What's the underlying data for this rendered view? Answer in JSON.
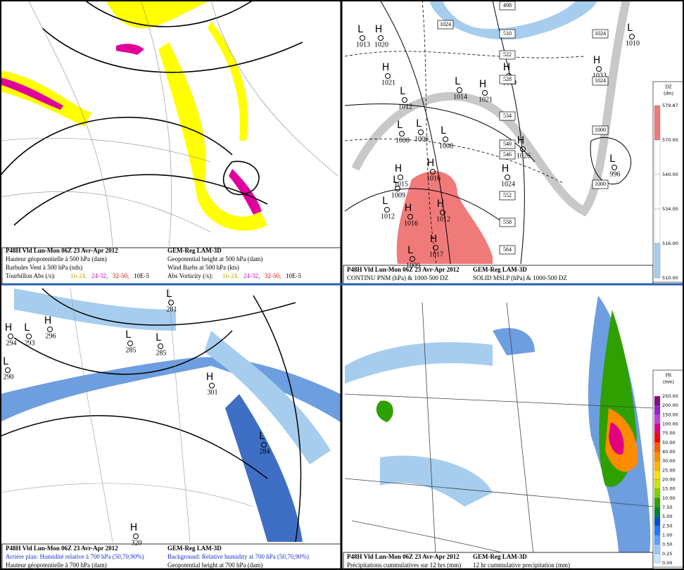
{
  "panels": [
    {
      "caption_left": [
        "P48H Vld Lun-Mon 06Z 23 Avr-Apr 2012",
        "Hauteur géopotentielle à 500 hPa (dam)",
        "Barbules Vent à 500 hPa (nds)"
      ],
      "caption_right": [
        "GEM-Reg LAM-3D",
        "Geopotential height at 500 hPa (dam)",
        "Wind Barbs at 500 hPa  (kts)"
      ],
      "legend": {
        "label_left": "Tourbillon Abs (/s):",
        "label_right": "Abs Vorticity (/s):",
        "ranges": [
          "16-24,",
          "24-32,",
          "32-50,"
        ],
        "unit": "10E-5"
      }
    },
    {
      "caption_left": [
        "P48H Vld Lun-Mon 06Z 23 Avr-Apr 2012",
        "CONTINU PNM (hPa) & 1000-500 DZ"
      ],
      "caption_right": [
        "GEM-Reg LAM-3D",
        "SOLID  MSLP (hPa) & 1000-500 DZ"
      ],
      "centers": [
        {
          "symbol": "L",
          "value": "1013"
        },
        {
          "symbol": "H",
          "value": "1020"
        },
        {
          "symbol": "H",
          "value": "1021"
        },
        {
          "symbol": "L",
          "value": "1012"
        },
        {
          "symbol": "L",
          "value": "1014"
        },
        {
          "symbol": "H",
          "value": "1021"
        },
        {
          "symbol": "H",
          "value": "1009"
        },
        {
          "symbol": "L",
          "value": "1008"
        },
        {
          "symbol": "L",
          "value": "1006"
        },
        {
          "symbol": "L",
          "value": "1008"
        },
        {
          "symbol": "H",
          "value": "1015"
        },
        {
          "symbol": "H",
          "value": "1016"
        },
        {
          "symbol": "L",
          "value": "1009"
        },
        {
          "symbol": "L",
          "value": "1012"
        },
        {
          "symbol": "H",
          "value": "1016"
        },
        {
          "symbol": "H",
          "value": "1012"
        },
        {
          "symbol": "H",
          "value": "1017"
        },
        {
          "symbol": "L",
          "value": "1009"
        },
        {
          "symbol": "H",
          "value": "1026"
        },
        {
          "symbol": "H",
          "value": "1024"
        },
        {
          "symbol": "H",
          "value": "1033"
        },
        {
          "symbol": "L",
          "value": "996"
        },
        {
          "symbol": "L",
          "value": "1010"
        }
      ],
      "boxes": [
        "498",
        "510",
        "522",
        "528",
        "534",
        "540",
        "546",
        "552",
        "558",
        "564",
        "1024",
        "1024",
        "1024",
        "1000",
        "1000"
      ],
      "colorbar": {
        "title": "DZ",
        "unit": "(dm)",
        "ticks": [
          "579.87",
          "570.00",
          "540.00",
          "534.00",
          "516.00",
          "510.00"
        ]
      }
    },
    {
      "caption_left": [
        "P48H Vld Lun-Mon 06Z 23 Avr-Apr 2012",
        "Arrière plan: Humidité relative à 700 hPa (50,70,90%)",
        "Hauteur géopotentielle à 700 hPa (dam)"
      ],
      "caption_right": [
        "GEM-Reg LAM-3D",
        "Background: Relative humidity at 700 hPa (50,70,90%)",
        "Geopotential height at 700 hPa (dam)"
      ],
      "centers": [
        {
          "symbol": "H",
          "value": "294"
        },
        {
          "symbol": "L",
          "value": "293"
        },
        {
          "symbol": "H",
          "value": "296"
        },
        {
          "symbol": "L",
          "value": "281"
        },
        {
          "symbol": "L",
          "value": "285"
        },
        {
          "symbol": "L",
          "value": "285"
        },
        {
          "symbol": "H",
          "value": "301"
        },
        {
          "symbol": "L",
          "value": "284"
        },
        {
          "symbol": "L",
          "value": "290"
        },
        {
          "symbol": "H",
          "value": "320"
        }
      ]
    },
    {
      "caption_left": [
        "P48H Vld Lun-Mon 06Z 23 Avr-Apr 2012",
        "Précipitations cummulatives sur 12 hrs (mm)"
      ],
      "caption_right": [
        "GEM-Reg LAM-3D",
        "12 hr cummulative precipitation       (mm)"
      ],
      "colorbar": {
        "title": "PR",
        "unit": "(mm)",
        "ticks": [
          "250.00",
          "200.00",
          "150.00",
          "100.00",
          "75.00",
          "50.00",
          "40.00",
          "30.00",
          "25.00",
          "20.00",
          "15.00",
          "10.00",
          "7.50",
          "5.00",
          "2.50",
          "1.00",
          "0.50",
          "0.25",
          "0.00"
        ]
      }
    }
  ]
}
